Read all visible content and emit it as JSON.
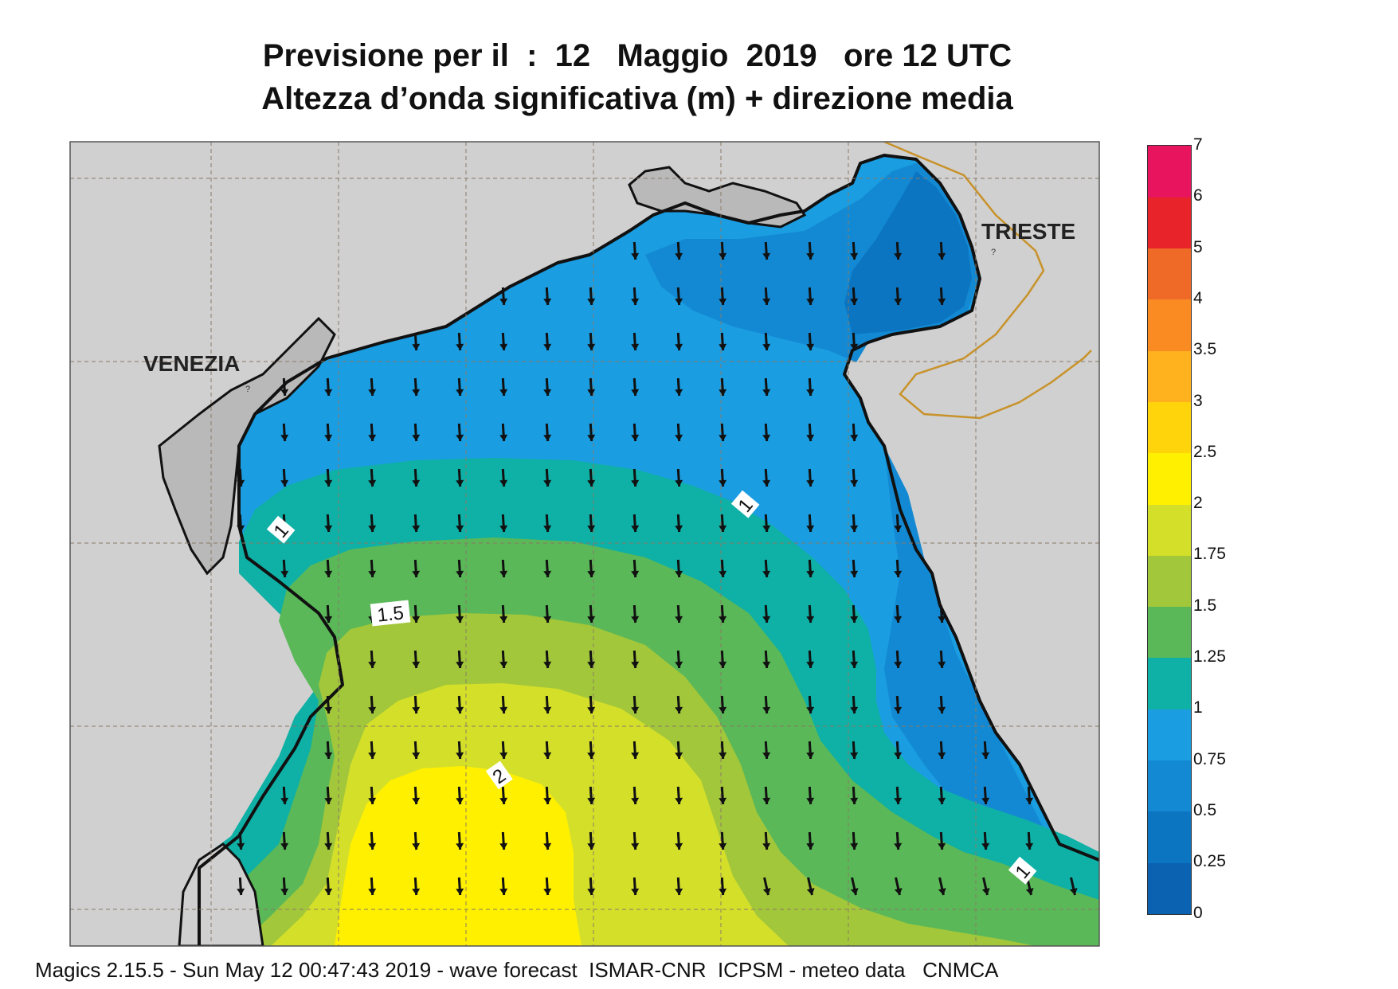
{
  "title_line1": "Previsione per il  :  12   Maggio  2019   ore 12 UTC",
  "title_line2": "Altezza d’onda significativa (m) + direzione media",
  "place_labels": {
    "venezia": "VENEZIA",
    "trieste": "TRIESTE"
  },
  "contour_labels": [
    "1",
    "1",
    "1",
    "1.5",
    "2"
  ],
  "legend": {
    "values": [
      "0",
      "0.25",
      "0.5",
      "0.75",
      "1",
      "1.25",
      "1.5",
      "1.75",
      "2",
      "2.5",
      "3",
      "3.5",
      "4",
      "5",
      "6",
      "7"
    ],
    "colors": [
      "#0a62b1",
      "#0c75c2",
      "#1389d3",
      "#1a9de1",
      "#0fb0a6",
      "#5ab858",
      "#a2c73a",
      "#d4df2a",
      "#fff000",
      "#ffd40a",
      "#ffb21e",
      "#fa8a22",
      "#f06a27",
      "#e8232a",
      "#e8145e"
    ]
  },
  "colors": {
    "land": "#d0d0d0",
    "lagoon": "#b9b9b9",
    "coast": "#111111",
    "border": "#c8922a"
  },
  "footer": "Magics 2.15.5 - Sun May 12 00:47:43 2019 - wave forecast  ISMAR-CNR  ICPSM - meteo data   CNMCA"
}
